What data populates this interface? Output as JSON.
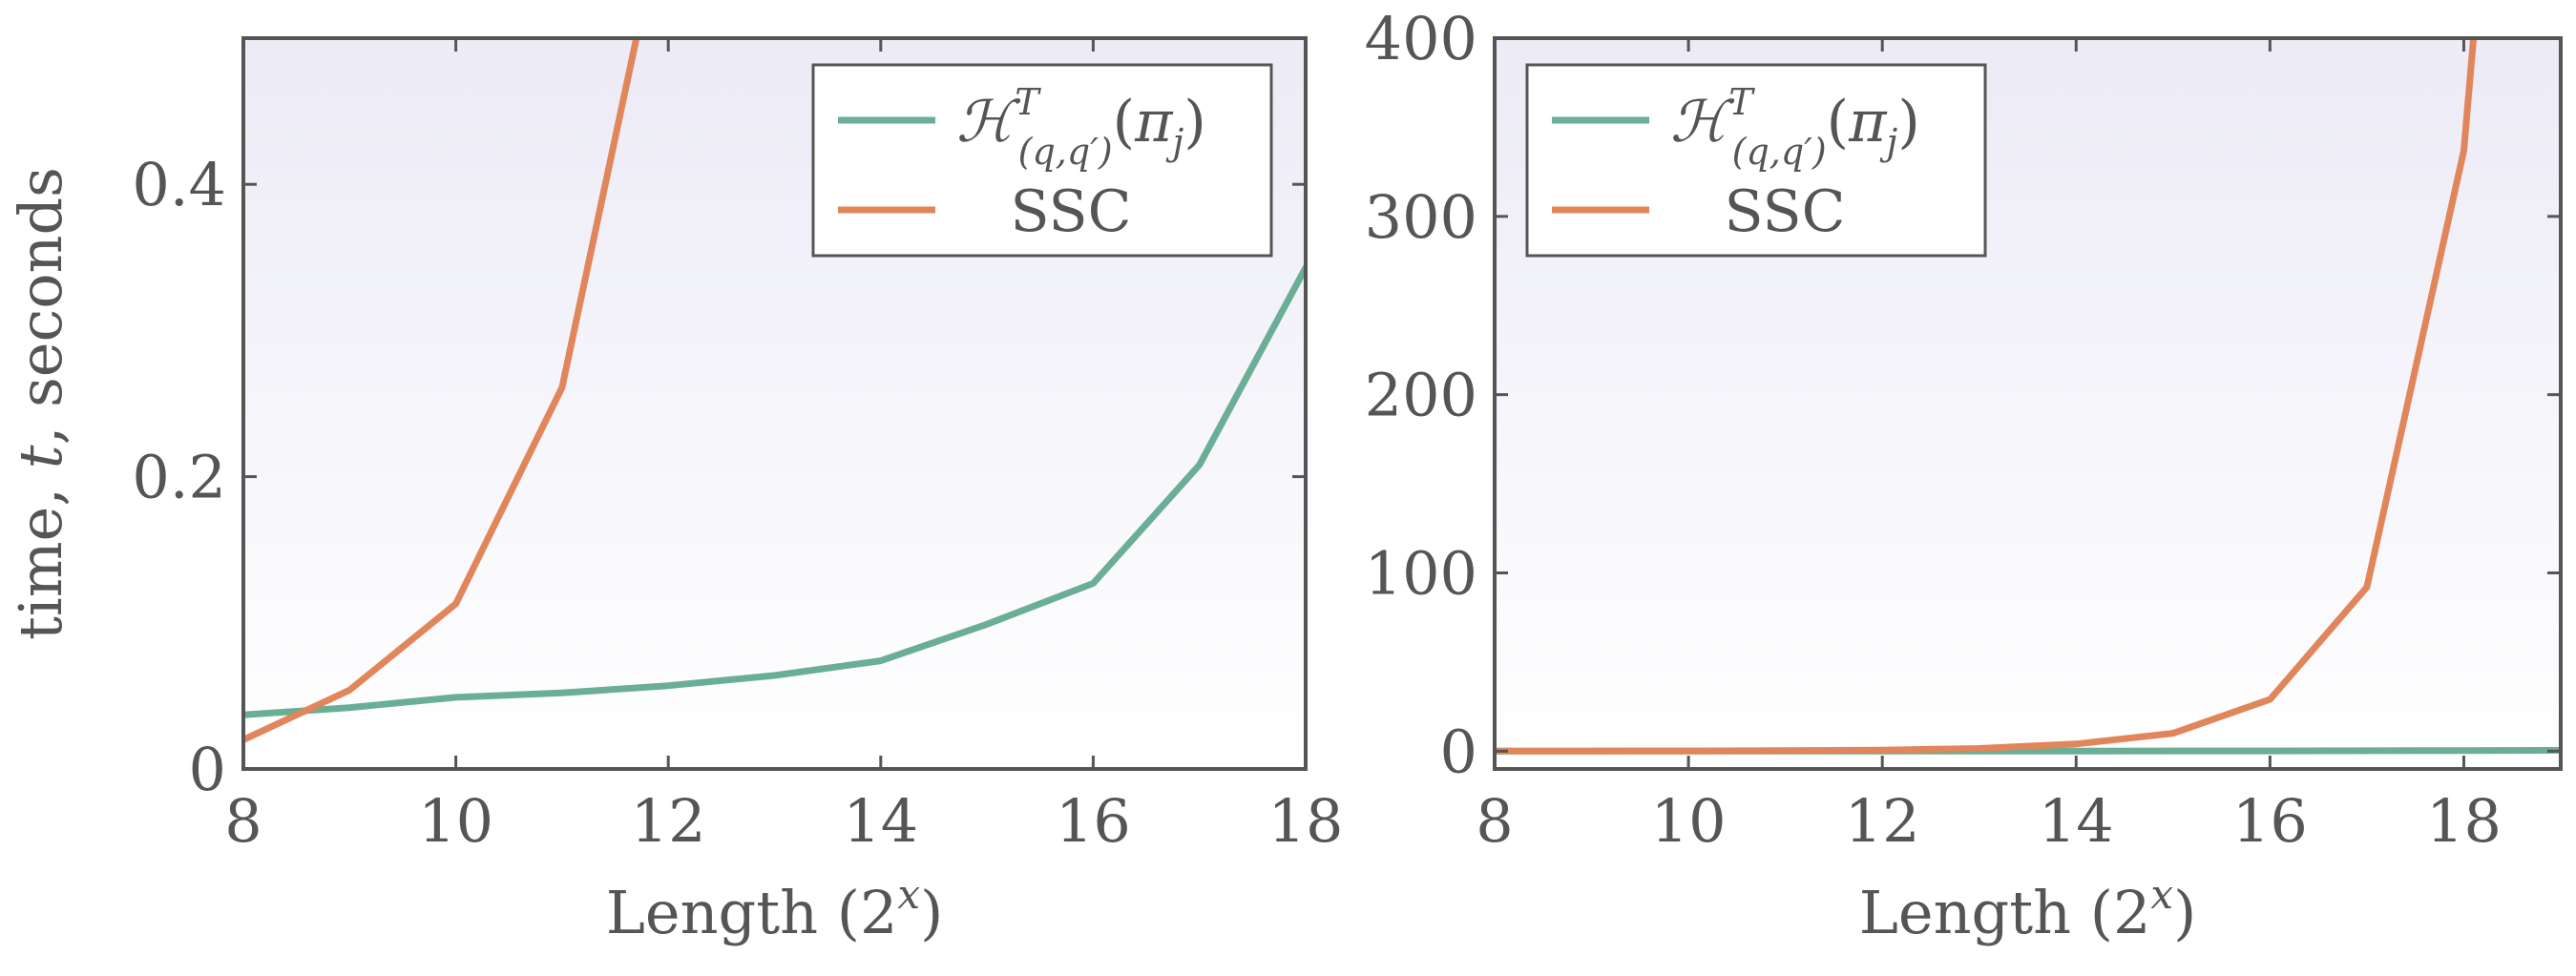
{
  "chart_data": [
    {
      "type": "line",
      "xlabel": "Length (2",
      "xlabel_sup": "x",
      "xlabel_end": ")",
      "ylabel_a": "time, ",
      "ylabel_t": "t",
      "ylabel_b": ", seconds",
      "xlim": [
        8,
        18
      ],
      "ylim": [
        0,
        0.5
      ],
      "xticks": [
        8,
        10,
        12,
        14,
        16,
        18
      ],
      "yticks": [
        0,
        0.2,
        0.4
      ],
      "ytick_labels": [
        "0",
        "0.2",
        "0.4"
      ],
      "legend_position": "top-right",
      "series": [
        {
          "name": "H^T_(q,q')(π_j)",
          "color": "#6aae96",
          "x": [
            8,
            9,
            10,
            11,
            12,
            13,
            14,
            15,
            16,
            17,
            18
          ],
          "y": [
            0.037,
            0.042,
            0.049,
            0.052,
            0.057,
            0.064,
            0.074,
            0.099,
            0.127,
            0.208,
            0.343
          ]
        },
        {
          "name": "SSC",
          "color": "#e0865a",
          "x": [
            8,
            9,
            10,
            11,
            11.7
          ],
          "y": [
            0.02,
            0.054,
            0.113,
            0.261,
            0.5
          ]
        }
      ]
    },
    {
      "type": "line",
      "xlabel": "Length (2",
      "xlabel_sup": "x",
      "xlabel_end": ")",
      "xlim": [
        8,
        19
      ],
      "ylim": [
        -10,
        400
      ],
      "xticks": [
        8,
        10,
        12,
        14,
        16,
        18
      ],
      "yticks": [
        0,
        100,
        200,
        300,
        400
      ],
      "ytick_labels": [
        "0",
        "100",
        "200",
        "300",
        "400"
      ],
      "legend_position": "top-left",
      "series": [
        {
          "name": "H^T_(q,q')(π_j)",
          "color": "#6aae96",
          "x": [
            8,
            9,
            10,
            11,
            12,
            13,
            14,
            15,
            16,
            17,
            18,
            19
          ],
          "y": [
            0.04,
            0.04,
            0.05,
            0.05,
            0.06,
            0.06,
            0.07,
            0.1,
            0.13,
            0.21,
            0.34,
            0.5
          ]
        },
        {
          "name": "SSC",
          "color": "#e0865a",
          "x": [
            8,
            9,
            10,
            11,
            12,
            13,
            14,
            15,
            16,
            17,
            18,
            18.1
          ],
          "y": [
            0.02,
            0.05,
            0.11,
            0.26,
            0.6,
            1.5,
            4,
            10,
            29,
            92,
            337,
            400
          ]
        }
      ]
    }
  ]
}
